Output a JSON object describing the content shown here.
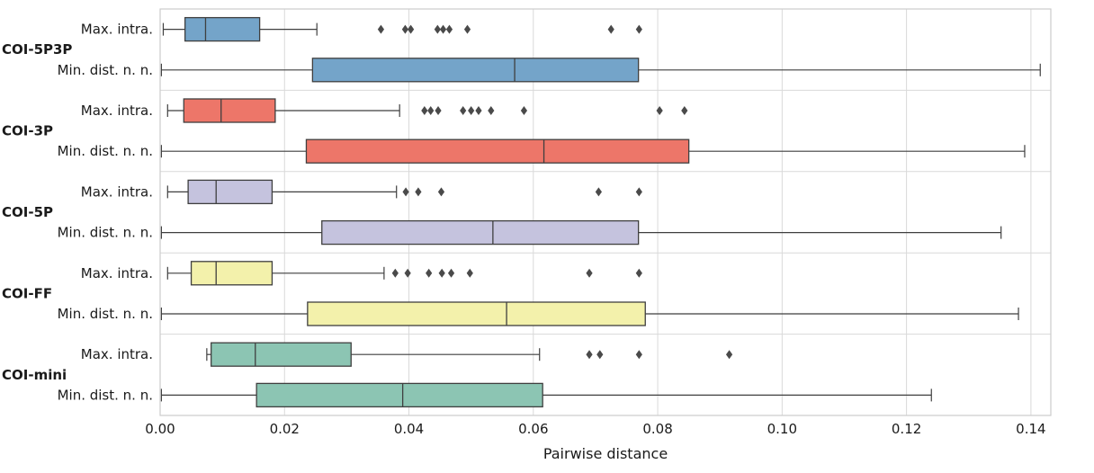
{
  "chart_data": {
    "type": "boxplot",
    "orientation": "horizontal",
    "title": "",
    "xlabel": "Pairwise distance",
    "xlim": [
      0,
      0.1432
    ],
    "xticks": [
      0.0,
      0.02,
      0.04,
      0.06,
      0.08,
      0.1,
      0.12,
      0.14
    ],
    "xtick_labels": [
      "0.00",
      "0.02",
      "0.04",
      "0.06",
      "0.08",
      "0.10",
      "0.12",
      "0.14"
    ],
    "grid": "vertical-lines-at-ticks, horizontal-separators-between-groups",
    "legend": "none",
    "groups": [
      {
        "name": "COI-5P3P",
        "color": "#74a4c9",
        "boxes": [
          {
            "label": "Max. intra.",
            "whisker_low": 0.0005,
            "q1": 0.004,
            "median": 0.0073,
            "q3": 0.016,
            "whisker_high": 0.0252,
            "outliers": [
              0.0355,
              0.0394,
              0.0403,
              0.0446,
              0.0455,
              0.0465,
              0.0494,
              0.0725,
              0.077
            ]
          },
          {
            "label": "Min. dist. n. n.",
            "whisker_low": 0.0002,
            "q1": 0.0245,
            "median": 0.057,
            "q3": 0.0769,
            "whisker_high": 0.1415,
            "outliers": []
          }
        ]
      },
      {
        "name": "COI-3P",
        "color": "#ed7669",
        "boxes": [
          {
            "label": "Max. intra.",
            "whisker_low": 0.0012,
            "q1": 0.0038,
            "median": 0.0098,
            "q3": 0.0185,
            "whisker_high": 0.0385,
            "outliers": [
              0.0425,
              0.0435,
              0.0447,
              0.0487,
              0.05,
              0.0512,
              0.0532,
              0.0585,
              0.0803,
              0.0843
            ]
          },
          {
            "label": "Min. dist. n. n.",
            "whisker_low": 0.0002,
            "q1": 0.0235,
            "median": 0.0617,
            "q3": 0.085,
            "whisker_high": 0.139,
            "outliers": []
          }
        ]
      },
      {
        "name": "COI-5P",
        "color": "#c5c3de",
        "boxes": [
          {
            "label": "Max. intra.",
            "whisker_low": 0.0012,
            "q1": 0.0045,
            "median": 0.009,
            "q3": 0.018,
            "whisker_high": 0.038,
            "outliers": [
              0.0395,
              0.0415,
              0.0452,
              0.0705,
              0.077
            ]
          },
          {
            "label": "Min. dist. n. n.",
            "whisker_low": 0.0002,
            "q1": 0.026,
            "median": 0.0535,
            "q3": 0.0769,
            "whisker_high": 0.1352,
            "outliers": []
          }
        ]
      },
      {
        "name": "COI-FF",
        "color": "#f3f1ab",
        "boxes": [
          {
            "label": "Max. intra.",
            "whisker_low": 0.0012,
            "q1": 0.005,
            "median": 0.009,
            "q3": 0.018,
            "whisker_high": 0.036,
            "outliers": [
              0.0378,
              0.0398,
              0.0432,
              0.0453,
              0.0468,
              0.0498,
              0.069,
              0.077
            ]
          },
          {
            "label": "Min. dist. n. n.",
            "whisker_low": 0.0002,
            "q1": 0.0237,
            "median": 0.0557,
            "q3": 0.078,
            "whisker_high": 0.138,
            "outliers": []
          }
        ]
      },
      {
        "name": "COI-mini",
        "color": "#8cc5b3",
        "boxes": [
          {
            "label": "Max. intra.",
            "whisker_low": 0.0075,
            "q1": 0.0082,
            "median": 0.0153,
            "q3": 0.0307,
            "whisker_high": 0.061,
            "outliers": [
              0.069,
              0.0707,
              0.077,
              0.0915
            ]
          },
          {
            "label": "Min. dist. n. n.",
            "whisker_low": 0.0002,
            "q1": 0.0155,
            "median": 0.039,
            "q3": 0.0615,
            "whisker_high": 0.124,
            "outliers": []
          }
        ]
      }
    ],
    "style": {
      "box_edge": "#3f3f3f",
      "outlier_color": "#4a4a4a",
      "grid_color": "#d9d9d9",
      "border_color": "#cccccc",
      "text_color": "#1a1a1a",
      "background": "#ffffff"
    }
  }
}
